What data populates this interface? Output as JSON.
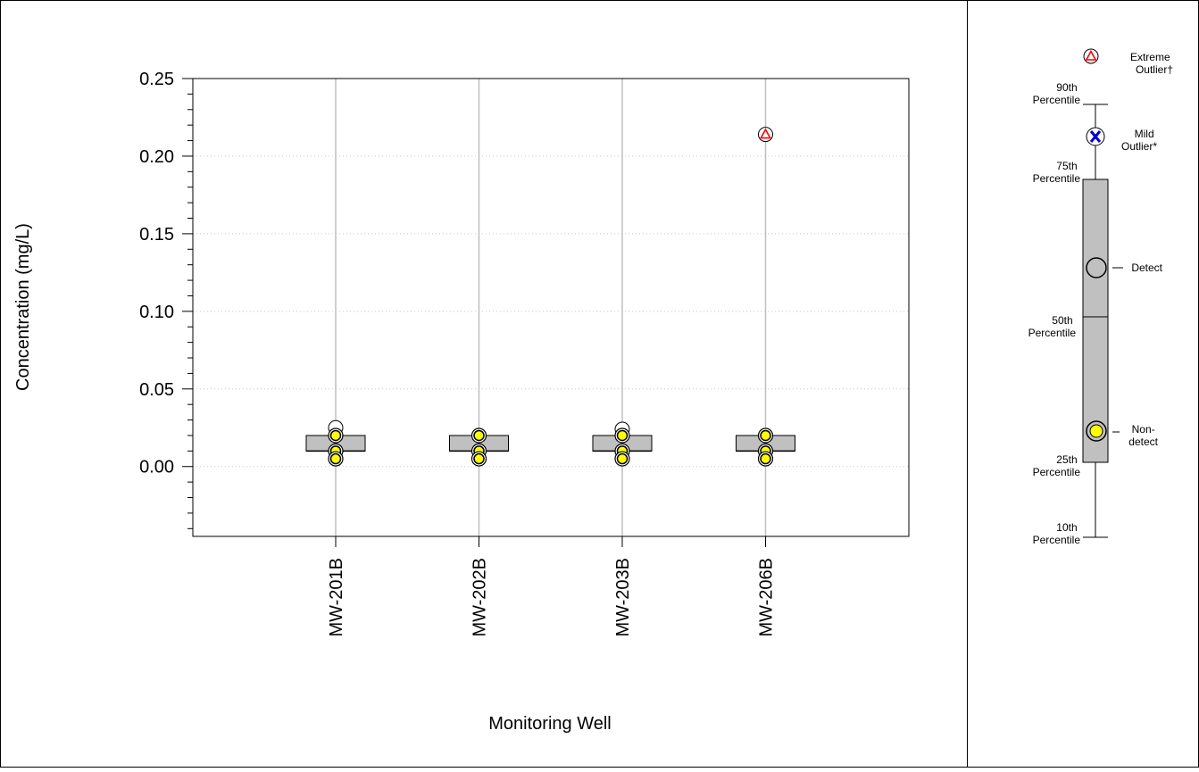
{
  "chart_data": {
    "type": "box",
    "ylabel": "Concentration (mg/L)",
    "xlabel": "Monitoring Well",
    "ylim": [
      -0.045,
      0.25
    ],
    "yticks": [
      0.0,
      0.05,
      0.1,
      0.15,
      0.2,
      0.25
    ],
    "ytick_labels": [
      "0.00",
      "0.05",
      "0.10",
      "0.15",
      "0.20",
      "0.25"
    ],
    "y_minor_step": 0.01,
    "grid": {
      "vertical_at_categories": true,
      "horizontal_dotted": true
    },
    "categories": [
      "MW-201B",
      "MW-202B",
      "MW-203B",
      "MW-206B"
    ],
    "boxes": [
      {
        "category": "MW-201B",
        "q1": 0.01,
        "median": 0.01,
        "q3": 0.02,
        "points": [
          {
            "value": 0.025,
            "type": "detect"
          },
          {
            "value": 0.02,
            "type": "nondetect"
          },
          {
            "value": 0.01,
            "type": "nondetect"
          },
          {
            "value": 0.005,
            "type": "nondetect"
          }
        ]
      },
      {
        "category": "MW-202B",
        "q1": 0.01,
        "median": 0.01,
        "q3": 0.02,
        "points": [
          {
            "value": 0.02,
            "type": "nondetect"
          },
          {
            "value": 0.01,
            "type": "nondetect"
          },
          {
            "value": 0.005,
            "type": "nondetect"
          }
        ]
      },
      {
        "category": "MW-203B",
        "q1": 0.01,
        "median": 0.01,
        "q3": 0.02,
        "points": [
          {
            "value": 0.024,
            "type": "detect"
          },
          {
            "value": 0.02,
            "type": "nondetect"
          },
          {
            "value": 0.01,
            "type": "nondetect"
          },
          {
            "value": 0.005,
            "type": "nondetect"
          }
        ]
      },
      {
        "category": "MW-206B",
        "q1": 0.01,
        "median": 0.01,
        "q3": 0.02,
        "points": [
          {
            "value": 0.214,
            "type": "extreme_outlier"
          },
          {
            "value": 0.02,
            "type": "nondetect"
          },
          {
            "value": 0.01,
            "type": "nondetect"
          },
          {
            "value": 0.005,
            "type": "nondetect"
          }
        ]
      }
    ],
    "colors": {
      "box_fill": "#c0c0c0",
      "nondetect_fill": "#ffff00",
      "grid": "#bfbfbf",
      "extreme_outlier": "#ff0000",
      "mild_outlier": "#0000cc"
    }
  },
  "legend": {
    "extreme_outlier": [
      "Extreme",
      "Outlier†"
    ],
    "p90": [
      "90th",
      "Percentile"
    ],
    "mild_outlier": [
      "Mild",
      "Outlier*"
    ],
    "p75": [
      "75th",
      "Percentile"
    ],
    "detect": [
      "Detect"
    ],
    "p50": [
      "50th",
      "Percentile"
    ],
    "nondetect": [
      "Non-",
      "detect"
    ],
    "p25": [
      "25th",
      "Percentile"
    ],
    "p10": [
      "10th",
      "Percentile"
    ]
  }
}
